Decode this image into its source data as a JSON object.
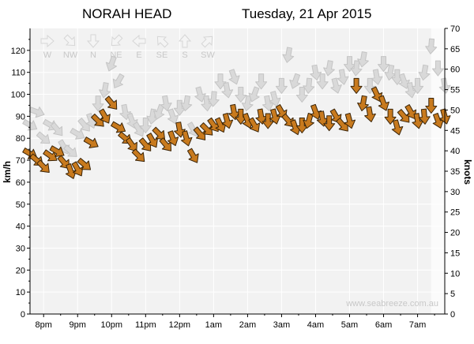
{
  "chart_data": {
    "type": "scatter",
    "title": "NORAH HEAD",
    "date_label": "Tuesday, 21 Apr 2015",
    "watermark": "www.seabreeze.com.au",
    "ylabel": "km/h",
    "y2label": "knots",
    "ylim": [
      0,
      130
    ],
    "y2lim": [
      0,
      70
    ],
    "yticks": [
      "0",
      "10",
      "20",
      "30",
      "40",
      "50",
      "60",
      "70",
      "80",
      "90",
      "100",
      "110",
      "120"
    ],
    "y2ticks": [
      "0",
      "5",
      "10",
      "15",
      "20",
      "25",
      "30",
      "35",
      "40",
      "45",
      "50",
      "55",
      "60",
      "65",
      "70"
    ],
    "direction_labels": [
      "W",
      "NW",
      "N",
      "NE",
      "E",
      "SE",
      "S",
      "SW"
    ],
    "xlabels": [
      "8pm",
      "9pm",
      "10pm",
      "11pm",
      "12pm",
      "1am",
      "2am",
      "3am",
      "4am",
      "5am",
      "6am",
      "7am"
    ],
    "x_range_hours": [
      19.6,
      31.8
    ],
    "shading": {
      "light_start_hour": 31.4,
      "dark_color": "#f2f2f2",
      "light_color": "#fbfbfb"
    },
    "series": [
      {
        "name": "",
        "color": "#c87a1e",
        "x": [
          19.6,
          19.8,
          20.0,
          20.2,
          20.4,
          20.6,
          20.8,
          21.0,
          21.2,
          21.4,
          21.6,
          21.8,
          22.0,
          22.2,
          22.4,
          22.6,
          22.8,
          23.0,
          23.2,
          23.4,
          23.6,
          23.8,
          24.0,
          24.2,
          24.4,
          24.6,
          24.8,
          25.0,
          25.2,
          25.4,
          25.6,
          25.8,
          26.0,
          26.2,
          26.4,
          26.6,
          26.8,
          27.0,
          27.2,
          27.4,
          27.6,
          27.8,
          28.0,
          28.2,
          28.4,
          28.6,
          28.8,
          29.0,
          29.2,
          29.4,
          29.6,
          29.8,
          30.0,
          30.2,
          30.4,
          30.6,
          30.8,
          31.0,
          31.2,
          31.4,
          31.6,
          31.8
        ],
        "y": [
          73,
          70,
          67,
          72,
          74,
          69,
          65,
          66,
          68,
          78,
          88,
          90,
          96,
          85,
          80,
          77,
          72,
          77,
          79,
          82,
          77,
          80,
          84,
          80,
          72,
          82,
          84,
          86,
          86,
          88,
          92,
          90,
          88,
          86,
          90,
          88,
          90,
          92,
          88,
          85,
          86,
          88,
          92,
          89,
          87,
          90,
          86,
          88,
          104,
          96,
          91,
          100,
          96,
          90,
          85,
          90,
          92,
          88,
          90,
          95,
          88,
          90
        ],
        "dir": [
          300,
          310,
          315,
          305,
          300,
          320,
          340,
          330,
          310,
          300,
          315,
          330,
          320,
          300,
          310,
          325,
          315,
          320,
          330,
          315,
          320,
          340,
          350,
          345,
          330,
          320,
          315,
          325,
          335,
          345,
          350,
          0,
          340,
          330,
          350,
          0,
          345,
          330,
          320,
          340,
          0,
          15,
          340,
          350,
          0,
          330,
          320,
          345,
          0,
          10,
          350,
          335,
          340,
          0,
          345,
          320,
          330,
          350,
          355,
          0,
          340,
          345
        ]
      },
      {
        "name": "",
        "color": "#d9d9d9",
        "x": [
          19.6,
          19.8,
          20.0,
          20.2,
          20.4,
          20.6,
          20.8,
          21.0,
          21.2,
          21.4,
          21.6,
          21.8,
          22.0,
          22.2,
          22.4,
          22.6,
          22.8,
          23.0,
          23.2,
          23.4,
          23.6,
          23.8,
          24.0,
          24.2,
          24.4,
          24.6,
          24.8,
          25.0,
          25.2,
          25.4,
          25.6,
          25.8,
          26.0,
          26.2,
          26.4,
          26.6,
          26.8,
          27.0,
          27.2,
          27.4,
          27.6,
          27.8,
          28.0,
          28.2,
          28.4,
          28.6,
          28.8,
          29.0,
          29.2,
          29.4,
          29.6,
          29.8,
          30.0,
          30.2,
          30.4,
          30.6,
          30.8,
          31.0,
          31.2,
          31.4,
          31.6,
          31.8
        ],
        "y": [
          86,
          92,
          80,
          86,
          84,
          76,
          74,
          82,
          86,
          88,
          96,
          102,
          114,
          106,
          92,
          88,
          84,
          86,
          90,
          92,
          96,
          90,
          94,
          96,
          84,
          100,
          96,
          98,
          106,
          102,
          108,
          100,
          96,
          100,
          106,
          96,
          98,
          104,
          118,
          106,
          100,
          104,
          110,
          106,
          112,
          104,
          108,
          114,
          112,
          116,
          104,
          108,
          114,
          110,
          108,
          106,
          102,
          104,
          110,
          122,
          112,
          104
        ],
        "dir": [
          300,
          290,
          310,
          300,
          320,
          330,
          310,
          300,
          320,
          340,
          0,
          10,
          20,
          30,
          350,
          340,
          330,
          0,
          10,
          20,
          350,
          340,
          0,
          10,
          330,
          345,
          355,
          5,
          0,
          350,
          340,
          0,
          10,
          20,
          0,
          350,
          345,
          0,
          10,
          20,
          0,
          5,
          350,
          0,
          10,
          345,
          350,
          0,
          5,
          10,
          0,
          350,
          0,
          10,
          0,
          340,
          350,
          0,
          10,
          5,
          0,
          350
        ]
      }
    ]
  }
}
